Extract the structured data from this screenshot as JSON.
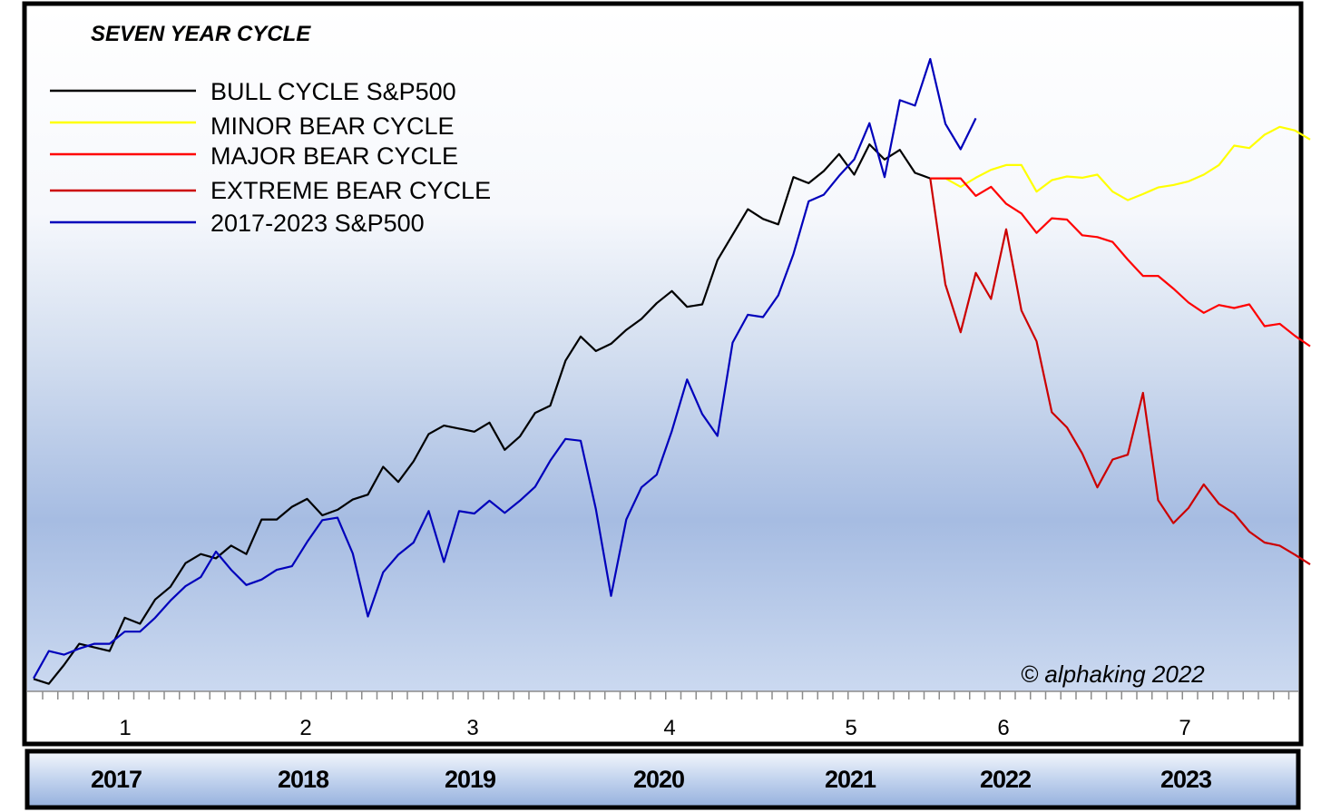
{
  "chart_data": {
    "type": "line",
    "title": "SEVEN YEAR CYCLE",
    "credit": "© alphaking 2022",
    "x_tick_labels": [
      "1",
      "2",
      "3",
      "4",
      "5",
      "6",
      "7"
    ],
    "year_labels": [
      "2017",
      "2018",
      "2019",
      "2020",
      "2021",
      "2022",
      "2023"
    ],
    "legend": [
      {
        "label": "BULL CYCLE S&P500",
        "color": "#000000"
      },
      {
        "label": "MINOR BEAR CYCLE",
        "color": "#ffff00"
      },
      {
        "label": "MAJOR BEAR CYCLE",
        "color": "#ff0000"
      },
      {
        "label": "EXTREME BEAR CYCLE",
        "color": "#cc0000"
      },
      {
        "label": "2017-2023  S&P500",
        "color": "#0000bb"
      }
    ],
    "series": [
      {
        "name": "BULL CYCLE S&P500",
        "color": "#000000",
        "x": [
          0,
          1,
          2,
          3,
          4,
          5,
          6,
          7,
          8,
          9,
          10,
          11,
          12,
          13,
          14,
          15,
          16,
          17,
          18,
          19,
          20,
          21,
          22,
          23,
          24,
          25,
          26,
          27,
          28,
          29,
          30,
          31,
          32,
          33,
          34,
          35,
          36,
          37,
          38,
          39,
          40,
          41,
          42,
          43,
          44,
          45,
          46,
          47,
          48,
          49,
          50,
          51,
          52,
          53,
          54,
          55,
          56,
          57,
          58,
          59
        ],
        "values": [
          1.0,
          0.2,
          3.3,
          6.8,
          6.2,
          5.6,
          11.1,
          10.1,
          14.1,
          16.2,
          20.1,
          21.6,
          20.9,
          23.0,
          21.6,
          27.3,
          27.3,
          29.4,
          30.7,
          28.0,
          28.9,
          30.6,
          31.4,
          36.0,
          33.5,
          36.9,
          41.4,
          42.8,
          42.3,
          41.8,
          43.3,
          38.8,
          41.0,
          44.9,
          46.1,
          53.5,
          57.5,
          55.1,
          56.3,
          58.6,
          60.4,
          63.0,
          65.0,
          62.4,
          62.8,
          70.1,
          74.3,
          78.5,
          76.9,
          76.0,
          83.8,
          82.8,
          84.8,
          87.6,
          84.2,
          89.2,
          86.7,
          88.3,
          84.5,
          83.6
        ]
      },
      {
        "name": "MINOR BEAR CYCLE",
        "color": "#ffff00",
        "x": [
          59,
          60,
          61,
          62,
          63,
          64,
          65,
          66,
          67,
          68,
          69,
          70,
          71,
          72,
          73,
          74,
          75,
          76,
          77,
          78,
          79,
          80,
          81,
          82,
          83,
          84
        ],
        "values": [
          83.6,
          83.6,
          82.2,
          83.7,
          85.0,
          85.8,
          85.8,
          81.4,
          83.3,
          83.9,
          83.7,
          84.2,
          81.4,
          80.0,
          81.0,
          82.1,
          82.5,
          83.1,
          84.2,
          85.8,
          89.0,
          88.6,
          90.8,
          92.1,
          91.5,
          90.0
        ]
      },
      {
        "name": "MAJOR BEAR CYCLE",
        "color": "#ff0000",
        "x": [
          59,
          60,
          61,
          62,
          63,
          64,
          65,
          66,
          67,
          68,
          69,
          70,
          71,
          72,
          73,
          74,
          75,
          76,
          77,
          78,
          79,
          80,
          81,
          82,
          83,
          84
        ],
        "values": [
          83.6,
          83.6,
          83.6,
          80.7,
          82.2,
          79.4,
          77.8,
          74.6,
          77.0,
          76.8,
          74.2,
          73.9,
          73.1,
          70.2,
          67.5,
          67.5,
          65.4,
          63.1,
          61.4,
          62.7,
          62.2,
          62.8,
          59.2,
          59.6,
          57.6,
          55.9
        ]
      },
      {
        "name": "EXTREME BEAR CYCLE",
        "color": "#cc0000",
        "x": [
          59,
          60,
          61,
          62,
          63,
          64,
          65,
          66,
          67,
          68,
          69,
          70,
          71,
          72,
          73,
          74,
          75,
          76,
          77,
          78,
          79,
          80,
          81,
          82,
          83,
          84
        ],
        "values": [
          83.6,
          66.1,
          58.2,
          68.0,
          63.7,
          75.2,
          61.8,
          56.7,
          45.0,
          42.5,
          38.2,
          32.6,
          37.2,
          38.0,
          48.2,
          30.5,
          26.7,
          29.2,
          33.1,
          29.9,
          28.3,
          25.3,
          23.5,
          23.0,
          21.5,
          19.9
        ]
      },
      {
        "name": "2017-2023  S&P500",
        "color": "#0000bb",
        "x": [
          0,
          1,
          2,
          3,
          4,
          5,
          6,
          7,
          8,
          9,
          10,
          11,
          12,
          13,
          14,
          15,
          16,
          17,
          18,
          19,
          20,
          21,
          22,
          23,
          24,
          25,
          26,
          27,
          28,
          29,
          30,
          31,
          32,
          33,
          34,
          35,
          36,
          37,
          38,
          39,
          40,
          41,
          42,
          43,
          44,
          45,
          46,
          47,
          48,
          49,
          50,
          51,
          52,
          53,
          54,
          55,
          56,
          57,
          58,
          59,
          60,
          61,
          62
        ],
        "values": [
          1.1,
          5.6,
          5.0,
          6.0,
          6.8,
          6.8,
          8.8,
          8.8,
          11.1,
          13.9,
          16.3,
          17.8,
          22.0,
          19.0,
          16.5,
          17.4,
          19.0,
          19.6,
          23.6,
          27.2,
          27.6,
          21.7,
          11.3,
          18.6,
          21.5,
          23.5,
          28.7,
          20.3,
          28.7,
          28.3,
          30.4,
          28.4,
          30.4,
          32.7,
          37.0,
          40.6,
          40.3,
          29.0,
          14.7,
          27.3,
          32.6,
          34.7,
          41.9,
          50.4,
          44.7,
          41.1,
          56.5,
          61.1,
          60.7,
          64.3,
          71.1,
          79.8,
          80.9,
          84.0,
          86.7,
          92.7,
          83.8,
          96.5,
          95.6,
          103.3,
          92.6,
          88.4,
          93.5
        ]
      }
    ]
  }
}
